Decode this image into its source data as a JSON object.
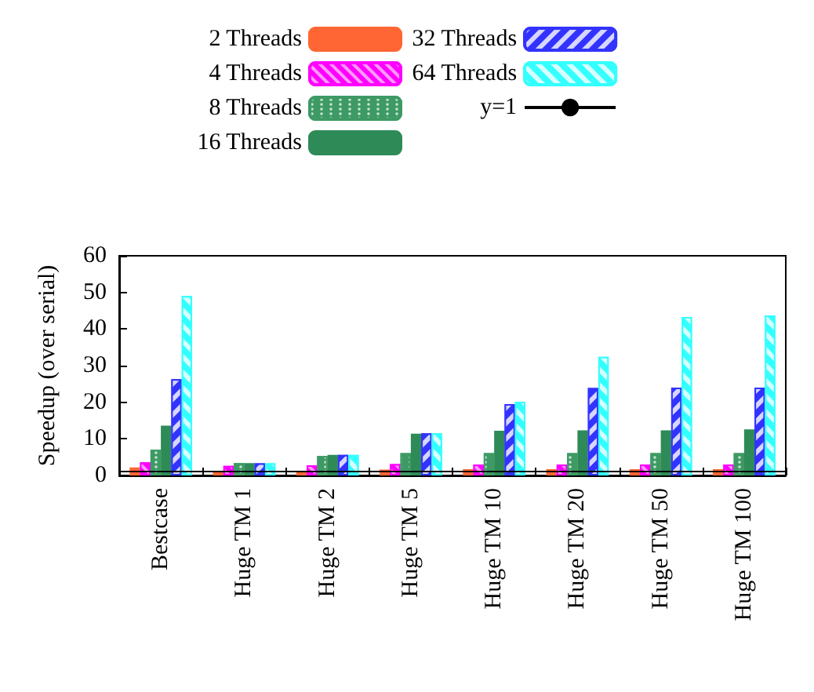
{
  "chart_data": {
    "type": "bar",
    "ylabel": "Speedup (over serial)",
    "categories": [
      "Bestcase",
      "Huge TM 1",
      "Huge TM 2",
      "Huge TM 5",
      "Huge TM 10",
      "Huge TM 20",
      "Huge TM 50",
      "Huge TM 100"
    ],
    "series": [
      {
        "name": "2 Threads",
        "color": "#ff6633",
        "values": [
          2.2,
          1.3,
          1.3,
          1.6,
          1.7,
          1.7,
          1.7,
          1.7
        ]
      },
      {
        "name": "4 Threads",
        "color": "#ff00ff",
        "values": [
          3.6,
          2.6,
          2.8,
          3.1,
          3.0,
          3.0,
          3.0,
          3.0
        ]
      },
      {
        "name": "8 Threads",
        "color": "#3e9a64",
        "values": [
          7.0,
          3.4,
          5.3,
          6.1,
          6.1,
          6.1,
          6.1,
          6.1
        ]
      },
      {
        "name": "16 Threads",
        "color": "#2e8b57",
        "values": [
          13.6,
          3.4,
          5.6,
          11.4,
          12.2,
          12.3,
          12.3,
          12.6
        ]
      },
      {
        "name": "32 Threads",
        "color": "#3333ff",
        "values": [
          26.3,
          3.3,
          5.6,
          11.5,
          19.5,
          23.9,
          24.0,
          24.0
        ]
      },
      {
        "name": "64 Threads",
        "color": "#33ffff",
        "values": [
          49.0,
          3.3,
          5.6,
          11.5,
          20.1,
          32.4,
          43.3,
          43.7
        ]
      }
    ],
    "ylim": [
      0,
      60
    ],
    "yticks": [
      0,
      10,
      20,
      30,
      40,
      50,
      60
    ],
    "ref_lines": [
      {
        "axis": "y",
        "value": 1,
        "label": "y=1",
        "color": "#000000"
      }
    ],
    "legend": "top",
    "grid": false
  }
}
